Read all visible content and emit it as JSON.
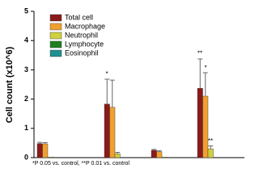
{
  "chart_data": {
    "type": "bar",
    "ylabel": "Cell count (x10^6)",
    "footnote": "*P 0.05 vs. control, **P 0.01 vs. control",
    "annotations": [
      "*",
      "**",
      "*",
      "**"
    ],
    "categories": [
      null,
      null,
      null,
      null
    ],
    "series": [
      {
        "name": "Total cell",
        "color": "#8b1a1a",
        "values": [
          0.48,
          1.83,
          0.25,
          2.37
        ],
        "errors": [
          0.04,
          0.85,
          0.03,
          1.0
        ]
      },
      {
        "name": "Macrophage",
        "color": "#f0a030",
        "values": [
          0.47,
          1.72,
          0.2,
          2.1
        ],
        "errors": [
          0.04,
          0.93,
          0.03,
          0.8
        ]
      },
      {
        "name": "Neutrophil",
        "color": "#d0d040",
        "values": [
          0.02,
          0.13,
          0.02,
          0.3
        ],
        "errors": [
          null,
          0.05,
          null,
          0.1
        ]
      },
      {
        "name": "Lymphocyte",
        "color": "#208020",
        "values": [
          0,
          0,
          0,
          0
        ],
        "errors": [
          null,
          null,
          null,
          null
        ]
      },
      {
        "name": "Eosinophil",
        "color": "#209090",
        "values": [
          0,
          0,
          0,
          0
        ],
        "errors": [
          null,
          null,
          null,
          null
        ]
      }
    ],
    "ylim": [
      0,
      5
    ],
    "yticks": [
      0,
      1,
      2,
      3,
      4,
      5
    ],
    "legend": "upper left"
  }
}
